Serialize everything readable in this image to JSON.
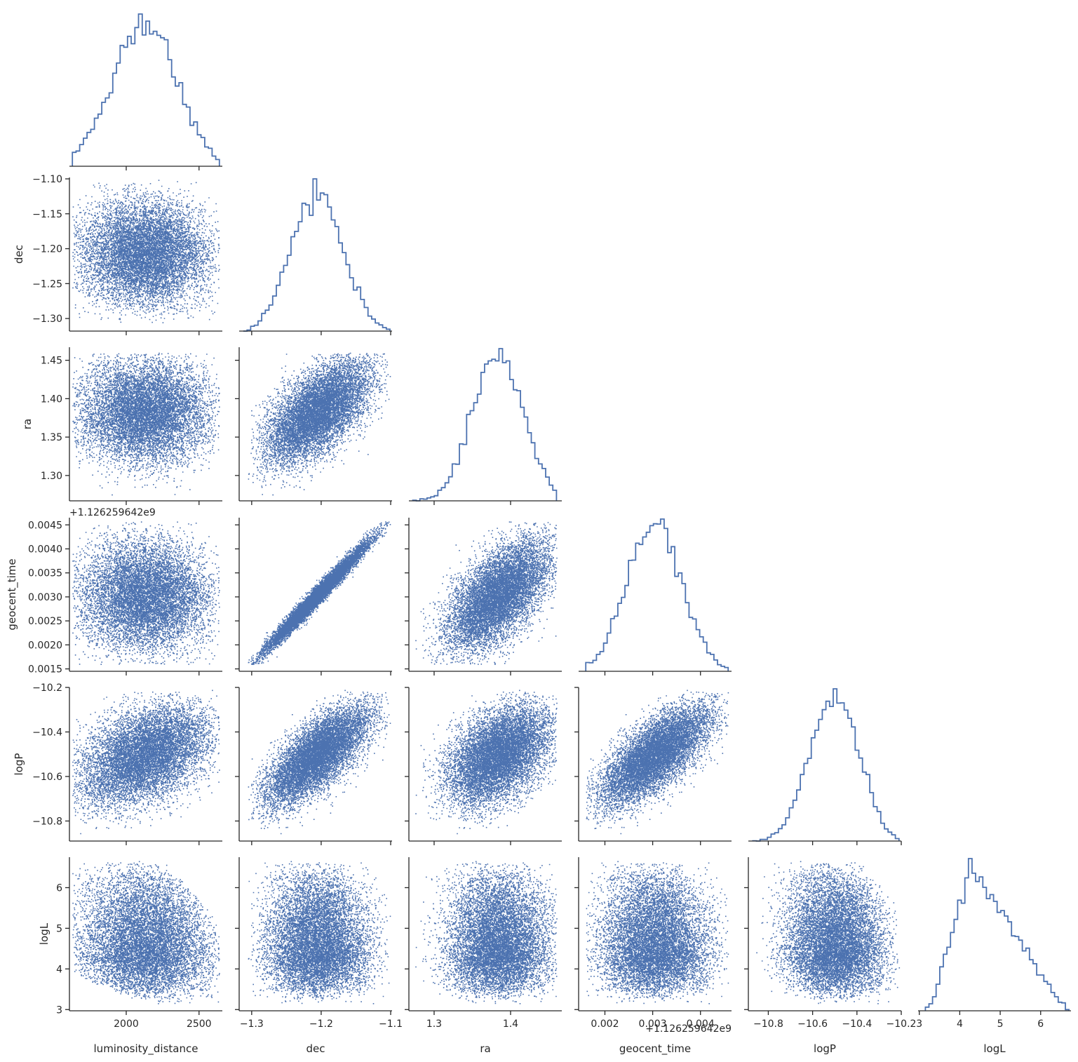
{
  "chart_data": {
    "type": "scatter",
    "layout": "corner-pairplot",
    "diagonal": "step-histogram",
    "color": "#4c72b0",
    "grid": false,
    "variables": [
      "luminosity_distance",
      "dec",
      "ra",
      "geocent_time",
      "logP",
      "logL"
    ],
    "labels": {
      "luminosity_distance": "luminosity_distance",
      "dec": "dec",
      "ra": "ra",
      "geocent_time": "geocent_time",
      "logP": "logP",
      "logL": "logL"
    },
    "ranges": {
      "luminosity_distance": [
        1610,
        2660
      ],
      "dec": [
        -1.318,
        -1.098
      ],
      "ra": [
        1.267,
        1.467
      ],
      "geocent_time": [
        0.00145,
        0.00465
      ],
      "logP": [
        -10.89,
        -10.2
      ],
      "logL": [
        2.97,
        6.75
      ]
    },
    "ticks": {
      "luminosity_distance": [
        "2000",
        "2500"
      ],
      "dec": [
        "−1.30",
        "−1.25",
        "−1.20",
        "−1.15",
        "−1.10"
      ],
      "dec_x": [
        "−1.3",
        "−1.2",
        "−1.1"
      ],
      "ra": [
        "1.30",
        "1.35",
        "1.40",
        "1.45"
      ],
      "ra_x": [
        "1.3",
        "1.4"
      ],
      "geocent_time": [
        "0.0015",
        "0.0020",
        "0.0025",
        "0.0030",
        "0.0035",
        "0.0040",
        "0.0045"
      ],
      "geocent_time_x": [
        "0.002",
        "0.003",
        "0.004"
      ],
      "logP": [
        "−10.8",
        "−10.6",
        "−10.4",
        "−10.2"
      ],
      "logP_y": [
        "−10.8",
        "−10.6",
        "−10.4",
        "−10.2"
      ],
      "logL": [
        "3",
        "4",
        "5",
        "6"
      ]
    },
    "offset_text": "+1.126259642e9",
    "distributions": {
      "luminosity_distance": {
        "mean": 2130,
        "sd": 230,
        "lo": 1630,
        "hi": 2640
      },
      "dec": {
        "mean": -1.205,
        "sd": 0.038,
        "lo": -1.312,
        "hi": -1.101
      },
      "ra": {
        "mean": 1.384,
        "sd": 0.034,
        "lo": 1.272,
        "hi": 1.46
      },
      "geocent_time": {
        "mean": 0.00305,
        "sd": 0.00058,
        "lo": 0.0016,
        "hi": 0.00458
      },
      "logP": {
        "mean": -10.5,
        "sd": 0.115,
        "lo": -10.87,
        "hi": -10.21
      },
      "logL": {
        "mode": 4.3,
        "lo": 3.15,
        "hi": 6.7
      }
    },
    "correlations": {
      "dec|geocent_time": 0.985,
      "dec|ra": 0.62,
      "ra|geocent_time": 0.6,
      "luminosity_distance|logP": 0.48,
      "dec|logP": 0.75,
      "ra|logP": 0.45,
      "geocent_time|logP": 0.72
    },
    "n_samples": 9000
  }
}
